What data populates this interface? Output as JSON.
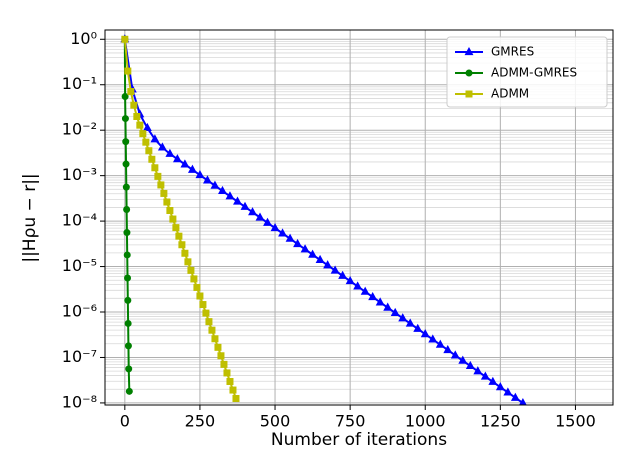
{
  "chart_data": {
    "type": "line",
    "x_label": "Number of iterations",
    "y_label": "||Hρu − r||",
    "xlim": [
      -66,
      1625
    ],
    "xticks": [
      0,
      250,
      500,
      750,
      1000,
      1250,
      1500
    ],
    "ylim": [
      9e-09,
      1.6
    ],
    "log_y": true,
    "grid": true,
    "minor_grid": true,
    "legend": "upper right",
    "yticks": [
      {
        "value": 1,
        "label": "10⁰"
      },
      {
        "value": 0.1,
        "label": "10⁻¹"
      },
      {
        "value": 0.01,
        "label": "10⁻²"
      },
      {
        "value": 0.001,
        "label": "10⁻³"
      },
      {
        "value": 0.0001,
        "label": "10⁻⁴"
      },
      {
        "value": 1e-05,
        "label": "10⁻⁵"
      },
      {
        "value": 1e-06,
        "label": "10⁻⁶"
      },
      {
        "value": 1e-07,
        "label": "10⁻⁷"
      },
      {
        "value": 1e-08,
        "label": "10⁻⁸"
      }
    ],
    "series": [
      {
        "name": "GMRES",
        "color": "#0000ff",
        "marker": "triangle",
        "x": [
          0,
          25,
          50,
          75,
          100,
          125,
          150,
          175,
          200,
          225,
          250,
          275,
          300,
          325,
          350,
          375,
          400,
          425,
          450,
          475,
          500,
          525,
          550,
          575,
          600,
          625,
          650,
          675,
          700,
          725,
          750,
          775,
          800,
          825,
          850,
          875,
          900,
          925,
          950,
          975,
          1000,
          1025,
          1050,
          1075,
          1100,
          1125,
          1150,
          1175,
          1200,
          1225,
          1250,
          1275,
          1300,
          1325
        ],
        "values": [
          1,
          0.079,
          0.0224,
          0.0112,
          0.0063,
          0.00417,
          0.00302,
          0.00231,
          0.00177,
          0.00135,
          0.00103,
          0.000788,
          0.000603,
          0.000461,
          0.000352,
          0.000269,
          0.000206,
          0.000157,
          0.00012,
          9.19e-05,
          7.03e-05,
          5.37e-05,
          4.1e-05,
          3.14e-05,
          2.4e-05,
          1.83e-05,
          1.4e-05,
          1.07e-05,
          8.19e-06,
          6.26e-06,
          4.79e-06,
          3.66e-06,
          2.8e-06,
          2.14e-06,
          1.63e-06,
          1.25e-06,
          9.55e-07,
          7.3e-07,
          5.58e-07,
          4.27e-07,
          3.26e-07,
          2.49e-07,
          1.91e-07,
          1.46e-07,
          1.11e-07,
          8.51e-08,
          6.51e-08,
          4.98e-08,
          3.8e-08,
          2.91e-08,
          2.22e-08,
          1.7e-08,
          1.3e-08,
          9.93e-09
        ]
      },
      {
        "name": "ADMM-GMRES",
        "color": "#008000",
        "marker": "circle",
        "x": [
          0,
          1,
          2,
          3,
          4,
          5,
          6,
          7,
          8,
          9,
          10,
          11,
          12,
          13,
          15
        ],
        "values": [
          1,
          0.055,
          0.018,
          0.0056,
          0.0018,
          0.00056,
          0.00018,
          5.6e-05,
          1.8e-05,
          5.6e-06,
          1.8e-06,
          5.6e-07,
          1.8e-07,
          5.6e-08,
          1.8e-08
        ]
      },
      {
        "name": "ADMM",
        "color": "#bfbf00",
        "marker": "square",
        "x": [
          0,
          10,
          20,
          30,
          40,
          50,
          60,
          70,
          80,
          90,
          100,
          110,
          120,
          130,
          140,
          150,
          160,
          170,
          180,
          190,
          200,
          210,
          220,
          230,
          240,
          250,
          260,
          270,
          280,
          290,
          300,
          310,
          320,
          330,
          340,
          350,
          360,
          370
        ],
        "values": [
          1,
          0.2,
          0.0708,
          0.0355,
          0.02,
          0.0129,
          0.00839,
          0.00545,
          0.00353,
          0.00229,
          0.00149,
          0.000964,
          0.000625,
          0.000406,
          0.000263,
          0.000171,
          0.000111,
          7.18e-05,
          4.66e-05,
          3.02e-05,
          1.96e-05,
          1.27e-05,
          8.24e-06,
          5.35e-06,
          3.47e-06,
          2.25e-06,
          1.46e-06,
          9.46e-07,
          6.14e-07,
          3.98e-07,
          2.58e-07,
          1.67e-07,
          1.09e-07,
          7.05e-08,
          4.57e-08,
          2.96e-08,
          1.92e-08,
          1.25e-08
        ]
      }
    ]
  }
}
